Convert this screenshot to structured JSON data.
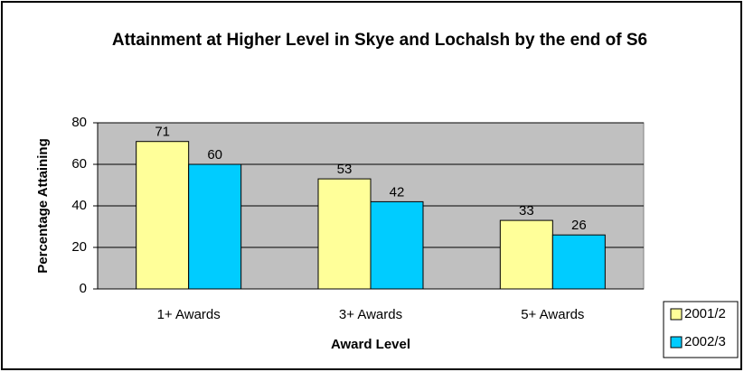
{
  "chart_data": {
    "type": "bar",
    "title": "Attainment at Higher Level in Skye and Lochalsh by the end of S6",
    "x_label": "Award Level",
    "y_label": "Percentage Attaining",
    "categories": [
      "1+ Awards",
      "3+ Awards",
      "5+ Awards"
    ],
    "series": [
      {
        "name": "2001/2",
        "color": "#ffff99",
        "values": [
          71,
          53,
          33
        ]
      },
      {
        "name": "2002/3",
        "color": "#00ccff",
        "values": [
          60,
          42,
          26
        ]
      }
    ],
    "ylim": [
      0,
      80
    ],
    "yticks": [
      0,
      20,
      40,
      60,
      80
    ],
    "grid": true,
    "legend": "right"
  }
}
